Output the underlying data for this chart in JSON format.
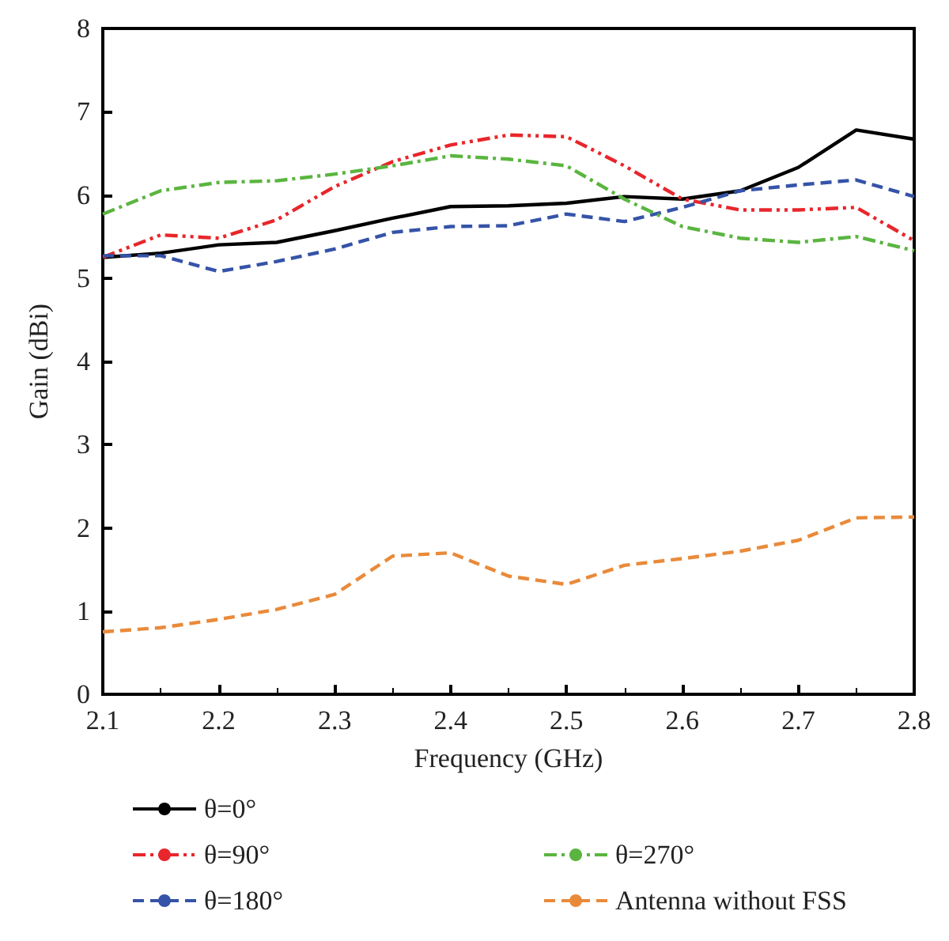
{
  "chart_data": {
    "type": "line",
    "xlabel": "Frequency (GHz)",
    "ylabel": "Gain (dBi)",
    "x": [
      2.1,
      2.15,
      2.2,
      2.25,
      2.3,
      2.35,
      2.4,
      2.45,
      2.5,
      2.55,
      2.6,
      2.65,
      2.7,
      2.75,
      2.8
    ],
    "series": [
      {
        "name": "θ=0°",
        "color": "#000000",
        "line_style": "solid",
        "values": [
          5.25,
          5.3,
          5.4,
          5.43,
          5.57,
          5.72,
          5.86,
          5.87,
          5.9,
          5.98,
          5.95,
          6.05,
          6.33,
          6.78,
          6.67
        ]
      },
      {
        "name": "θ=90°",
        "color": "#e8262b",
        "line_style": "dashdotdot",
        "values": [
          5.25,
          5.52,
          5.48,
          5.7,
          6.1,
          6.4,
          6.6,
          6.72,
          6.7,
          6.35,
          5.95,
          5.82,
          5.82,
          5.85,
          5.45
        ]
      },
      {
        "name": "θ=180°",
        "color": "#3553a8",
        "line_style": "dashed",
        "values": [
          5.27,
          5.27,
          5.08,
          5.2,
          5.35,
          5.55,
          5.62,
          5.63,
          5.77,
          5.68,
          5.85,
          6.05,
          6.12,
          6.18,
          5.98
        ]
      },
      {
        "name": "θ=270°",
        "color": "#5ab540",
        "line_style": "dashdot",
        "values": [
          5.77,
          6.05,
          6.15,
          6.17,
          6.25,
          6.35,
          6.47,
          6.43,
          6.35,
          5.95,
          5.62,
          5.48,
          5.43,
          5.5,
          5.33
        ]
      },
      {
        "name": "Antenna without FSS",
        "color": "#e98a3a",
        "line_style": "dashed",
        "values": [
          0.75,
          0.8,
          0.9,
          1.02,
          1.2,
          1.66,
          1.7,
          1.42,
          1.32,
          1.55,
          1.63,
          1.72,
          1.85,
          2.12,
          2.13
        ]
      }
    ],
    "xlim": [
      2.1,
      2.8
    ],
    "xticks": [
      2.1,
      2.2,
      2.3,
      2.4,
      2.5,
      2.6,
      2.7,
      2.8
    ],
    "ylim": [
      0,
      8
    ],
    "yticks": [
      0,
      1,
      2,
      3,
      4,
      5,
      6,
      7,
      8
    ],
    "grid": false,
    "legend": "bottom",
    "marker": "none"
  }
}
